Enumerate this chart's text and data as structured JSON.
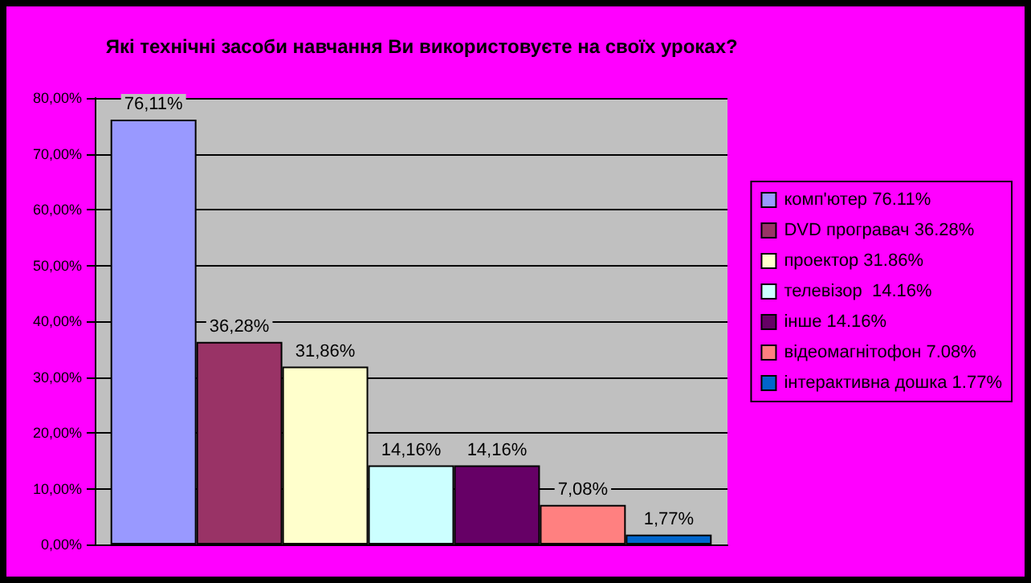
{
  "chart_data": {
    "type": "bar",
    "title": "Які технічні засоби навчання Ви використовуєте на своїх уроках?",
    "categories": [
      null
    ],
    "series": [
      {
        "name": "комп'ютер 76.11%",
        "color": "#9999ff",
        "values": [
          76.11
        ],
        "value_labels": [
          "76,11%"
        ]
      },
      {
        "name": "DVD програвач 36.28%",
        "color": "#993366",
        "values": [
          36.28
        ],
        "value_labels": [
          "36,28%"
        ]
      },
      {
        "name": "проектор 31.86%",
        "color": "#ffffcc",
        "values": [
          31.86
        ],
        "value_labels": [
          "31,86%"
        ]
      },
      {
        "name": "телевізор  14.16%",
        "color": "#ccffff",
        "values": [
          14.16
        ],
        "value_labels": [
          "14,16%"
        ]
      },
      {
        "name": "інше 14.16%",
        "color": "#660066",
        "values": [
          14.16
        ],
        "value_labels": [
          "14,16%"
        ]
      },
      {
        "name": "відеомагнітофон 7.08%",
        "color": "#ff8080",
        "values": [
          7.08
        ],
        "value_labels": [
          "7,08%"
        ]
      },
      {
        "name": "інтерактивна дошка 1.77%",
        "color": "#0066cc",
        "values": [
          1.77
        ],
        "value_labels": [
          "1,77%"
        ]
      }
    ],
    "ylim": [
      0,
      80
    ],
    "yticks": [
      {
        "value": 0,
        "label": "0,00%"
      },
      {
        "value": 10,
        "label": "10,00%"
      },
      {
        "value": 20,
        "label": "20,00%"
      },
      {
        "value": 30,
        "label": "30,00%"
      },
      {
        "value": 40,
        "label": "40,00%"
      },
      {
        "value": 50,
        "label": "50,00%"
      },
      {
        "value": 60,
        "label": "60,00%"
      },
      {
        "value": 70,
        "label": "70,00%"
      },
      {
        "value": 80,
        "label": "80,00%"
      }
    ],
    "grid": "y",
    "legend": "right"
  }
}
